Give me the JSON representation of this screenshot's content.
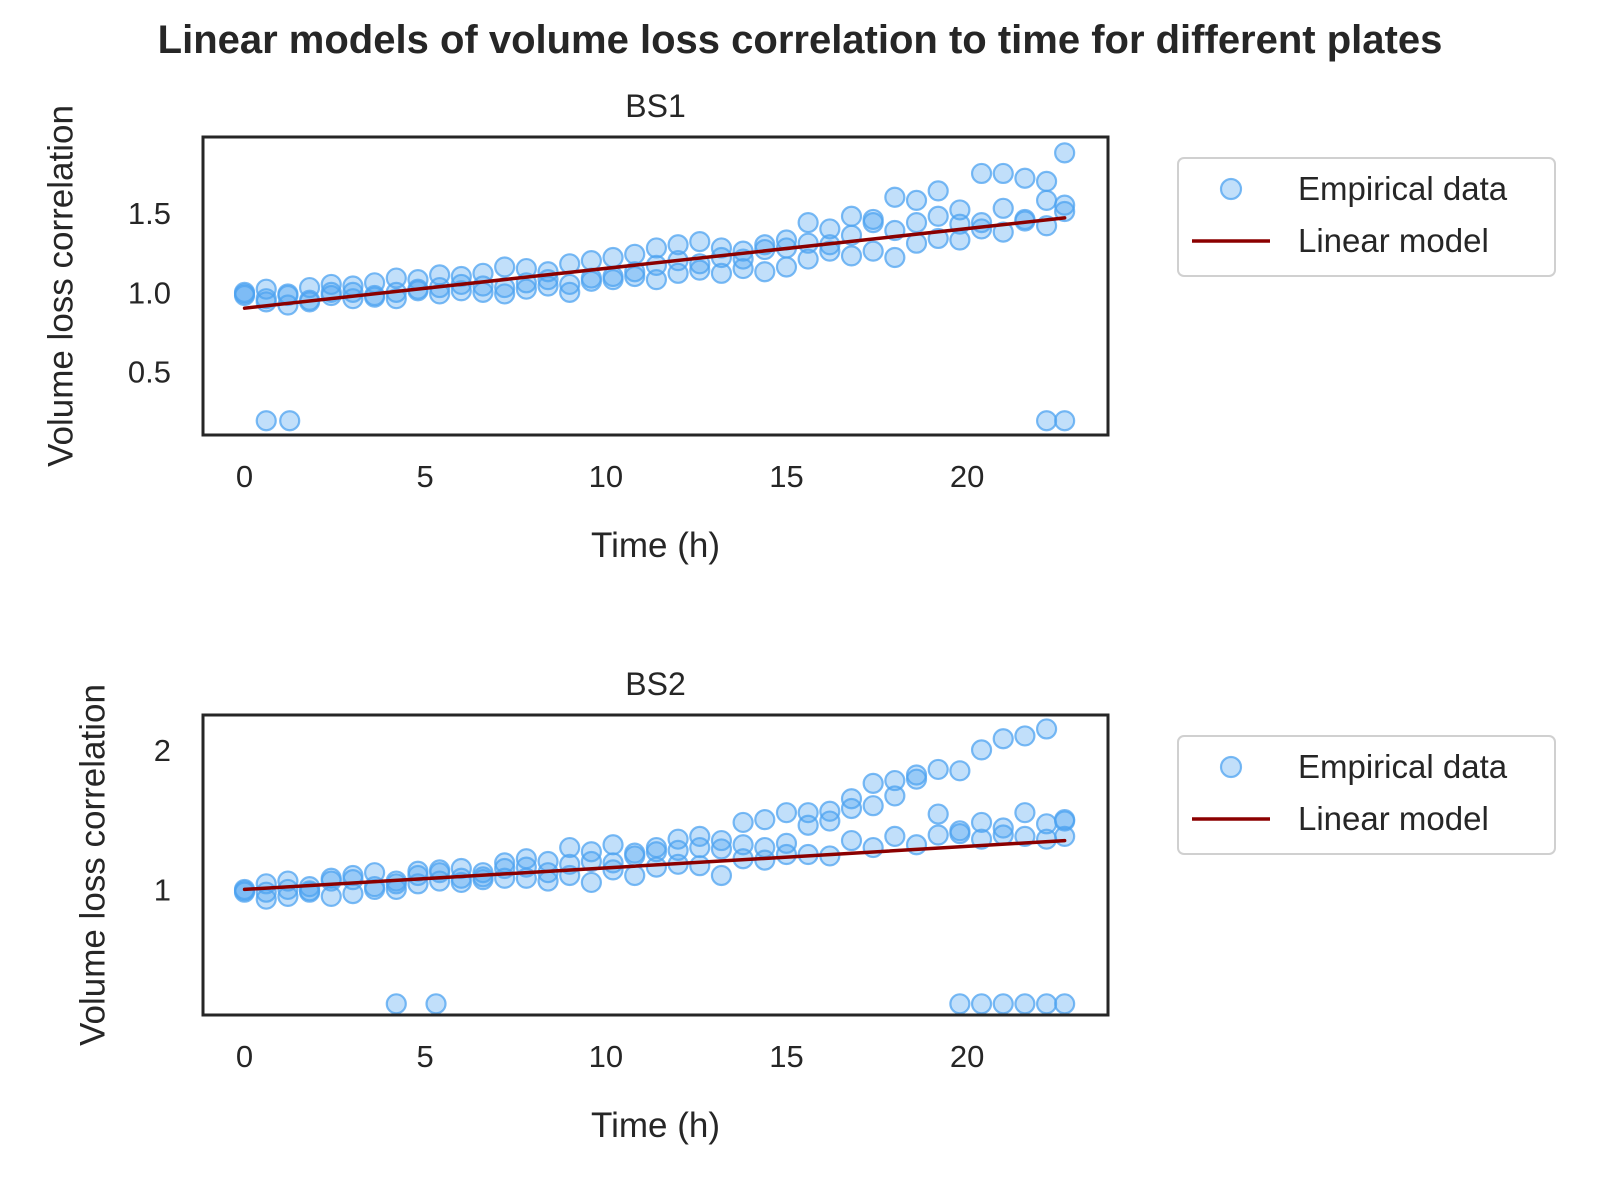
{
  "figure_title": "Linear models of volume loss correlation to time for different plates",
  "colors": {
    "points": "#4da3f0",
    "model_line": "#8b0000",
    "axes": "#262626"
  },
  "chart_data": [
    {
      "type": "scatter",
      "title": "BS1",
      "xlabel": "Time (h)",
      "ylabel": "Volume loss correlation",
      "xlim": [
        -1.15,
        23.9
      ],
      "ylim": [
        0.1,
        1.98
      ],
      "xticks": [
        0,
        5,
        10,
        15,
        20
      ],
      "yticks": [
        0.5,
        1.0,
        1.5
      ],
      "ytick_labels": [
        "0.5",
        "1.0",
        "1.5"
      ],
      "grid": false,
      "legend": {
        "placement": "outside-right",
        "entries": [
          "Empirical data",
          "Linear model"
        ]
      },
      "series": [
        {
          "name": "Empirical data",
          "kind": "scatter",
          "x": [
            0,
            0.6,
            1.2,
            1.8,
            2.4,
            3.0,
            3.6,
            4.2,
            4.8,
            5.4,
            6.0,
            6.6,
            7.2,
            7.8,
            8.4,
            9.0,
            9.6,
            10.2,
            10.8,
            11.4,
            12.0,
            12.6,
            13.2,
            13.8,
            14.4,
            15.0,
            15.6,
            16.2,
            16.8,
            17.4,
            18.0,
            18.6,
            19.2,
            19.8,
            20.4,
            21.0,
            21.6,
            22.2,
            22.7,
            0,
            0.6,
            1.2,
            1.8,
            2.4,
            3.0,
            3.6,
            4.2,
            4.8,
            5.4,
            6.0,
            6.6,
            7.2,
            7.8,
            8.4,
            9.0,
            9.6,
            10.2,
            10.8,
            11.4,
            12.0,
            12.6,
            13.2,
            13.8,
            14.4,
            15.0,
            15.6,
            16.2,
            16.8,
            17.4,
            18.0,
            18.6,
            19.2,
            19.8,
            20.4,
            21.0,
            21.6,
            22.2,
            22.7,
            0,
            0.6,
            1.2,
            1.8,
            2.4,
            3.0,
            3.6,
            4.2,
            4.8,
            5.4,
            6.0,
            6.6,
            7.2,
            7.8,
            8.4,
            9.0,
            9.6,
            10.2,
            10.8,
            11.4,
            12.0,
            12.6,
            13.2,
            13.8,
            14.4,
            15.0,
            15.6,
            16.2,
            16.8,
            17.4,
            18.0,
            18.6,
            19.2,
            19.8,
            20.4,
            21.0,
            21.6,
            22.2,
            22.7,
            0.6,
            1.25,
            22.2,
            22.7
          ],
          "y": [
            1.0,
            1.02,
            0.98,
            1.03,
            1.05,
            1.04,
            1.06,
            1.09,
            1.08,
            1.11,
            1.1,
            1.12,
            1.16,
            1.15,
            1.13,
            1.18,
            1.2,
            1.22,
            1.24,
            1.28,
            1.3,
            1.32,
            1.28,
            1.26,
            1.3,
            1.33,
            1.44,
            1.4,
            1.48,
            1.46,
            1.6,
            1.58,
            1.64,
            1.52,
            1.75,
            1.75,
            1.72,
            1.7,
            1.88,
            0.99,
            0.96,
            0.92,
            0.95,
            0.98,
            1.0,
            0.97,
            1.0,
            1.02,
            1.03,
            1.05,
            1.04,
            1.03,
            1.06,
            1.08,
            1.05,
            1.09,
            1.1,
            1.13,
            1.17,
            1.2,
            1.18,
            1.22,
            1.21,
            1.27,
            1.28,
            1.31,
            1.3,
            1.36,
            1.44,
            1.39,
            1.44,
            1.48,
            1.43,
            1.44,
            1.53,
            1.46,
            1.58,
            1.55,
            0.98,
            0.94,
            0.99,
            0.94,
            1.0,
            0.96,
            0.98,
            0.96,
            1.01,
            0.99,
            1.01,
            1.0,
            0.99,
            1.02,
            1.04,
            1.0,
            1.07,
            1.08,
            1.1,
            1.08,
            1.12,
            1.14,
            1.12,
            1.15,
            1.13,
            1.16,
            1.21,
            1.26,
            1.23,
            1.26,
            1.22,
            1.31,
            1.34,
            1.33,
            1.4,
            1.38,
            1.45,
            1.42,
            1.51,
            0.19,
            0.19,
            0.19,
            0.19
          ]
        },
        {
          "name": "Linear model",
          "kind": "line",
          "x": [
            0,
            22.7
          ],
          "y": [
            0.9,
            1.47
          ]
        }
      ]
    },
    {
      "type": "scatter",
      "title": "BS2",
      "xlabel": "Time (h)",
      "ylabel": "Volume loss correlation",
      "xlim": [
        -1.15,
        23.9
      ],
      "ylim": [
        0.1,
        2.25
      ],
      "xticks": [
        0,
        5,
        10,
        15,
        20
      ],
      "yticks": [
        1,
        2
      ],
      "ytick_labels": [
        "1",
        "2"
      ],
      "grid": false,
      "legend": {
        "placement": "outside-right",
        "entries": [
          "Empirical data",
          "Linear model"
        ]
      },
      "series": [
        {
          "name": "Empirical data",
          "kind": "scatter",
          "x": [
            0,
            0.6,
            1.2,
            1.8,
            2.4,
            3.0,
            3.6,
            4.2,
            4.8,
            5.4,
            6.0,
            6.6,
            7.2,
            7.8,
            8.4,
            9.0,
            9.6,
            10.2,
            10.8,
            11.4,
            12.0,
            12.6,
            13.2,
            13.8,
            14.4,
            15.0,
            15.6,
            16.2,
            16.8,
            17.4,
            18.0,
            18.6,
            19.2,
            19.8,
            20.4,
            21.0,
            21.6,
            22.2,
            22.7,
            0,
            0.6,
            1.2,
            1.8,
            2.4,
            3.0,
            3.6,
            4.2,
            4.8,
            5.4,
            6.0,
            6.6,
            7.2,
            7.8,
            8.4,
            9.0,
            9.6,
            10.2,
            10.8,
            11.4,
            12.0,
            12.6,
            13.2,
            13.8,
            14.4,
            15.0,
            15.6,
            16.2,
            16.8,
            17.4,
            18.0,
            18.6,
            19.2,
            19.8,
            20.4,
            21.0,
            21.6,
            22.2,
            22.7,
            0,
            0.6,
            1.2,
            1.8,
            2.4,
            3.0,
            3.6,
            4.2,
            4.8,
            5.4,
            6.0,
            6.6,
            7.2,
            7.8,
            8.4,
            9.0,
            9.6,
            10.2,
            10.8,
            11.4,
            12.0,
            12.6,
            13.2,
            13.8,
            14.4,
            15.0,
            15.6,
            16.2,
            16.8,
            17.4,
            18.0,
            18.6,
            19.2,
            19.8,
            20.4,
            21.0,
            21.6,
            22.2,
            22.7,
            4.2,
            5.3,
            19.8,
            20.4,
            21.0,
            21.6,
            22.2,
            22.7
          ],
          "y": [
            1.0,
            1.04,
            1.06,
            1.02,
            1.08,
            1.1,
            1.12,
            1.06,
            1.13,
            1.14,
            1.15,
            1.12,
            1.19,
            1.22,
            1.2,
            1.3,
            1.27,
            1.32,
            1.26,
            1.3,
            1.36,
            1.38,
            1.35,
            1.48,
            1.5,
            1.55,
            1.55,
            1.56,
            1.65,
            1.76,
            1.78,
            1.82,
            1.86,
            1.85,
            2.0,
            2.08,
            2.1,
            2.15,
            1.5,
            0.99,
            0.98,
            1.0,
            0.99,
            1.06,
            1.07,
            1.02,
            1.04,
            1.1,
            1.12,
            1.08,
            1.09,
            1.15,
            1.16,
            1.12,
            1.18,
            1.2,
            1.19,
            1.24,
            1.27,
            1.28,
            1.3,
            1.29,
            1.32,
            1.3,
            1.33,
            1.46,
            1.49,
            1.58,
            1.6,
            1.67,
            1.79,
            1.54,
            1.42,
            1.48,
            1.44,
            1.55,
            1.47,
            1.49,
            0.98,
            0.93,
            0.95,
            0.98,
            0.95,
            0.97,
            1.0,
            1.0,
            1.04,
            1.06,
            1.05,
            1.07,
            1.08,
            1.08,
            1.06,
            1.1,
            1.05,
            1.14,
            1.1,
            1.16,
            1.18,
            1.17,
            1.1,
            1.22,
            1.21,
            1.25,
            1.25,
            1.24,
            1.35,
            1.3,
            1.38,
            1.32,
            1.39,
            1.4,
            1.36,
            1.39,
            1.38,
            1.36,
            1.38,
            0.18,
            0.18,
            0.18,
            0.18,
            0.18,
            0.18,
            0.18,
            0.18
          ]
        },
        {
          "name": "Linear model",
          "kind": "line",
          "x": [
            0,
            22.7
          ],
          "y": [
            1.0,
            1.35
          ]
        }
      ]
    }
  ]
}
